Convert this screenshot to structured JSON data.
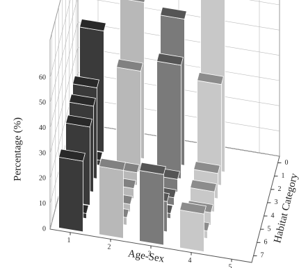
{
  "chart_data": {
    "type": "bar3d",
    "xlabel": "Age-Sex",
    "ylabel": "Percentage (%)",
    "hlabel": "Habitat Category",
    "xlim": [
      0.5,
      5.5
    ],
    "xticks": [
      1,
      2,
      3,
      4,
      5
    ],
    "hlim": [
      -0.5,
      7.5
    ],
    "hticks": [
      0,
      1,
      2,
      3,
      4,
      5,
      6,
      7
    ],
    "ylim": [
      0,
      60
    ],
    "yticks": [
      0,
      10,
      20,
      30,
      40,
      50,
      60
    ],
    "h": [
      1,
      2,
      3,
      4,
      5,
      6,
      7
    ],
    "grid": true,
    "series": [
      {
        "x": 1,
        "color": "#3a3a3a",
        "values": [
          48,
          2,
          36,
          34,
          31,
          2,
          28
        ]
      },
      {
        "x": 2,
        "color": "#b8b8b8",
        "values": [
          62,
          40,
          5,
          4,
          3,
          3,
          27
        ]
      },
      {
        "x": 3,
        "color": "#7a7a7a",
        "values": [
          58,
          45,
          5,
          3,
          2,
          12,
          28
        ]
      },
      {
        "x": 4,
        "color": "#c8c8c8",
        "values": [
          70,
          40,
          10,
          8,
          5,
          3,
          15
        ]
      }
    ]
  }
}
